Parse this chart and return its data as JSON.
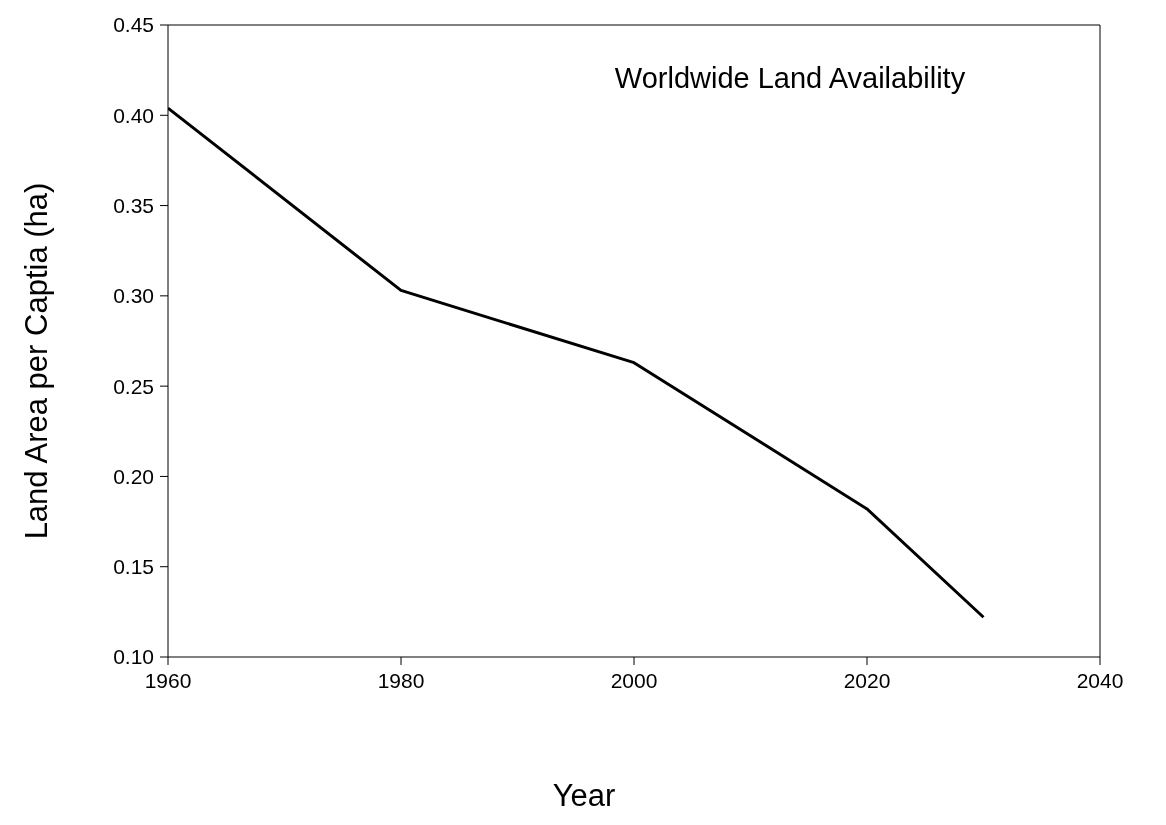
{
  "chart_data": {
    "type": "line",
    "title": "Worldwide Land Availability",
    "xlabel": "Year",
    "ylabel": "Land Area per Captia (ha)",
    "x": [
      1960,
      1980,
      2000,
      2020,
      2030
    ],
    "series": [
      {
        "color": "#000000",
        "values": [
          0.404,
          0.303,
          0.263,
          0.182,
          0.122
        ]
      }
    ],
    "xlim": [
      1960,
      2040
    ],
    "xticks": [
      1960,
      1980,
      2000,
      2020,
      2040
    ],
    "ylim": [
      0.1,
      0.45
    ],
    "yticks": [
      {
        "value": 0.1,
        "label": "0.10"
      },
      {
        "value": 0.15,
        "label": "0.15"
      },
      {
        "value": 0.2,
        "label": "0.20"
      },
      {
        "value": 0.25,
        "label": "0.25"
      },
      {
        "value": 0.3,
        "label": "0.30"
      },
      {
        "value": 0.35,
        "label": "0.35"
      },
      {
        "value": 0.4,
        "label": "0.40"
      },
      {
        "value": 0.45,
        "label": "0.45"
      }
    ],
    "grid": false,
    "legend": false,
    "marker": "none",
    "line_style": "solid"
  }
}
